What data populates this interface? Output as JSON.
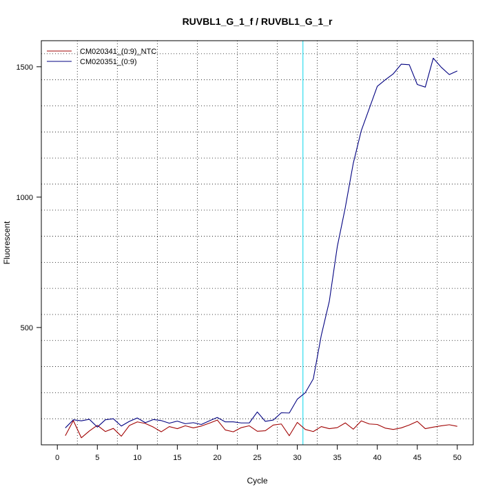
{
  "chart_data": {
    "type": "line",
    "title": "RUVBL1_G_1_f / RUVBL1_G_1_r",
    "xlabel": "Cycle",
    "ylabel": "Fluorescent",
    "xlim": [
      -2,
      52
    ],
    "ylim": [
      50,
      1600
    ],
    "x_ticks": [
      0,
      5,
      10,
      15,
      20,
      25,
      30,
      35,
      40,
      45,
      50
    ],
    "y_ticks": [
      500,
      1000,
      1500
    ],
    "grid": true,
    "legend_position": "top-left",
    "threshold_line": {
      "x": 30.7,
      "color": "#40e0f0"
    },
    "x": [
      1,
      2,
      3,
      4,
      5,
      6,
      7,
      8,
      9,
      10,
      11,
      12,
      13,
      14,
      15,
      16,
      17,
      18,
      19,
      20,
      21,
      22,
      23,
      24,
      25,
      26,
      27,
      28,
      29,
      30,
      31,
      32,
      33,
      34,
      35,
      36,
      37,
      38,
      39,
      40,
      41,
      42,
      43,
      44,
      45,
      46,
      47,
      48,
      49,
      50
    ],
    "series": [
      {
        "name": "CM020341_(0:9)_NTC",
        "color": "#a00000",
        "values": [
          85,
          143,
          77,
          103,
          125,
          101,
          113,
          83,
          124,
          138,
          132,
          118,
          100,
          120,
          112,
          123,
          115,
          122,
          133,
          145,
          107,
          100,
          116,
          123,
          102,
          104,
          126,
          130,
          85,
          136,
          109,
          101,
          120,
          112,
          116,
          134,
          110,
          142,
          130,
          128,
          114,
          109,
          115,
          126,
          140,
          112,
          118,
          123,
          127,
          121
        ]
      },
      {
        "name": "CM020351_(0:9)",
        "color": "#000080",
        "values": [
          115,
          146,
          142,
          148,
          118,
          146,
          150,
          122,
          140,
          153,
          135,
          147,
          143,
          133,
          141,
          131,
          135,
          128,
          142,
          155,
          138,
          138,
          134,
          134,
          176,
          140,
          145,
          173,
          172,
          225,
          250,
          303,
          470,
          600,
          810,
          960,
          1130,
          1255,
          1340,
          1425,
          1450,
          1473,
          1510,
          1508,
          1432,
          1422,
          1533,
          1498,
          1470,
          1484
        ]
      }
    ]
  }
}
